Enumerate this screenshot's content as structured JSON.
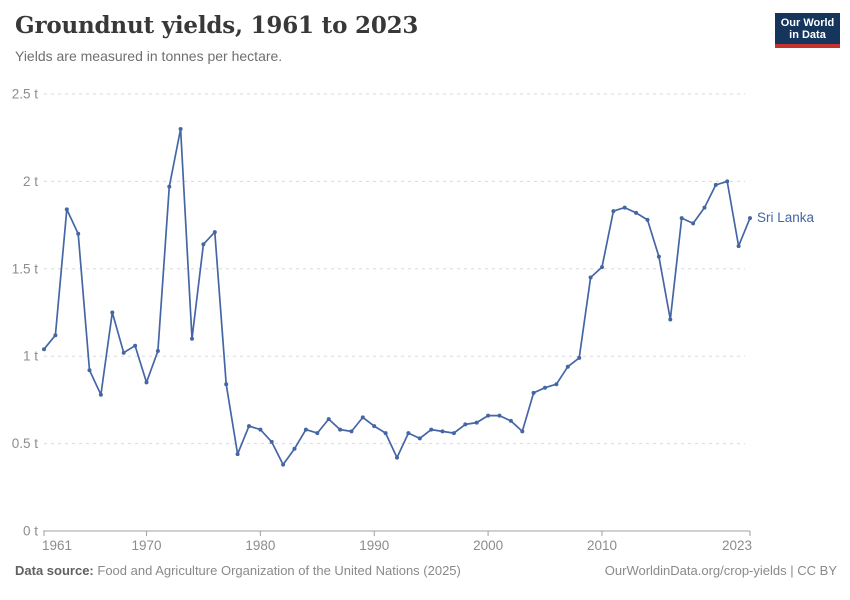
{
  "header": {
    "title": "Groundnut yields, 1961 to 2023",
    "subtitle": "Yields are measured in tonnes per hectare.",
    "logo_line1": "Our World",
    "logo_line2": "in Data"
  },
  "footer": {
    "source_label": "Data source:",
    "source": "Food and Agriculture Organization of the United Nations (2025)",
    "url": "OurWorldinData.org/crop-yields",
    "divider": "|",
    "license": "CC BY"
  },
  "colors": {
    "line": "#4566a5",
    "grid": "#dadada",
    "axis": "#a0a0a0",
    "tick_label": "#8c8c8c",
    "logo_bg": "#16355c",
    "logo_accent": "#c4342f"
  },
  "chart_data": {
    "type": "line",
    "title": "Groundnut yields, 1961 to 2023",
    "subtitle": "Yields are measured in tonnes per hectare.",
    "xlabel": "",
    "ylabel": "tonnes per hectare",
    "unit_suffix": " t",
    "xlim": [
      1961,
      2023
    ],
    "ylim": [
      0,
      2.5
    ],
    "x_ticks": [
      1961,
      1970,
      1980,
      1990,
      2000,
      2010,
      2023
    ],
    "y_ticks": [
      0,
      0.5,
      1,
      1.5,
      2,
      2.5
    ],
    "grid": "dashed horizontal gridlines, legend label at line end",
    "x": [
      1961,
      1962,
      1963,
      1964,
      1965,
      1966,
      1967,
      1968,
      1969,
      1970,
      1971,
      1972,
      1973,
      1974,
      1975,
      1976,
      1977,
      1978,
      1979,
      1980,
      1981,
      1982,
      1983,
      1984,
      1985,
      1986,
      1987,
      1988,
      1989,
      1990,
      1991,
      1992,
      1993,
      1994,
      1995,
      1996,
      1997,
      1998,
      1999,
      2000,
      2001,
      2002,
      2003,
      2004,
      2005,
      2006,
      2007,
      2008,
      2009,
      2010,
      2011,
      2012,
      2013,
      2014,
      2015,
      2016,
      2017,
      2018,
      2019,
      2020,
      2021,
      2022,
      2023
    ],
    "series": [
      {
        "name": "Sri Lanka",
        "color": "#4566a5",
        "values": [
          1.04,
          1.12,
          1.84,
          1.7,
          0.92,
          0.78,
          1.25,
          1.02,
          1.06,
          0.85,
          1.03,
          1.97,
          2.3,
          1.1,
          1.64,
          1.71,
          0.84,
          0.44,
          0.6,
          0.58,
          0.51,
          0.38,
          0.47,
          0.58,
          0.56,
          0.64,
          0.58,
          0.57,
          0.65,
          0.6,
          0.56,
          0.42,
          0.56,
          0.53,
          0.58,
          0.57,
          0.56,
          0.61,
          0.62,
          0.66,
          0.66,
          0.63,
          0.57,
          0.79,
          0.82,
          0.84,
          0.94,
          0.99,
          1.45,
          1.51,
          1.83,
          1.85,
          1.82,
          1.78,
          1.57,
          1.21,
          1.79,
          1.76,
          1.85,
          1.98,
          2.0,
          1.63,
          1.79
        ]
      }
    ]
  }
}
